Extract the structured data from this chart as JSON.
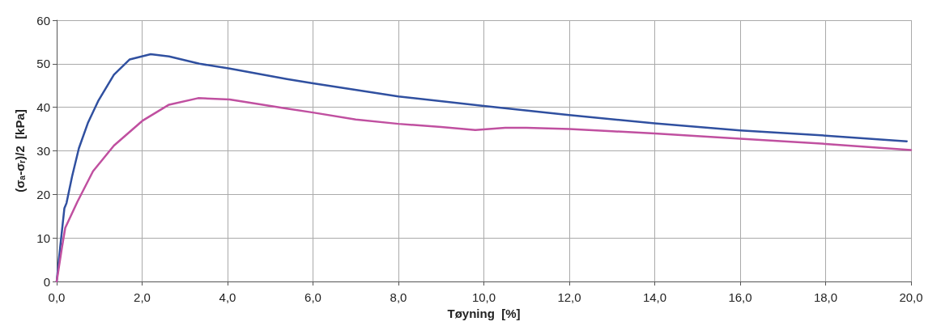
{
  "chart_data": {
    "type": "line",
    "xlabel": "Tøyning  [%]",
    "ylabel": "(σₐ-σᵣ)/2  [kPa]",
    "xlim": [
      0,
      20
    ],
    "ylim": [
      0,
      60
    ],
    "xticks": [
      {
        "value": 0,
        "label": "0,0"
      },
      {
        "value": 2,
        "label": "2,0"
      },
      {
        "value": 4,
        "label": "4,0"
      },
      {
        "value": 6,
        "label": "6,0"
      },
      {
        "value": 8,
        "label": "8,0"
      },
      {
        "value": 10,
        "label": "10,0"
      },
      {
        "value": 12,
        "label": "12,0"
      },
      {
        "value": 14,
        "label": "14,0"
      },
      {
        "value": 16,
        "label": "16,0"
      },
      {
        "value": 18,
        "label": "18,0"
      },
      {
        "value": 20,
        "label": "20,0"
      }
    ],
    "yticks": [
      0,
      10,
      20,
      30,
      40,
      50,
      60
    ],
    "grid": true,
    "marker": "none",
    "line_style": "solid",
    "series": [
      {
        "color": "#3050a0",
        "x": [
          0,
          0.05,
          0.18,
          0.23,
          0.36,
          0.52,
          0.73,
          0.98,
          1.34,
          1.71,
          2.2,
          2.63,
          3.34,
          4.05,
          5.39,
          6,
          8,
          10,
          12,
          14,
          16,
          18,
          19.9
        ],
        "values": [
          0,
          5,
          16.8,
          18,
          24.1,
          30.6,
          36.4,
          41.6,
          47.5,
          51,
          52.2,
          51.7,
          50,
          48.9,
          46.5,
          45.5,
          42.5,
          40.3,
          38.2,
          36.3,
          34.7,
          33.5,
          32.2
        ]
      },
      {
        "color": "#c050a0",
        "x": [
          0,
          0.12,
          0.2,
          0.48,
          0.85,
          1.34,
          2.02,
          2.63,
          3.31,
          4.05,
          5.39,
          6,
          7,
          8,
          9,
          9.8,
          10.5,
          11,
          12,
          13,
          14,
          16,
          18,
          20
        ],
        "values": [
          0,
          7.6,
          12.3,
          18.2,
          25.3,
          31.2,
          37,
          40.6,
          42.1,
          41.8,
          39.7,
          38.8,
          37.2,
          36.2,
          35.5,
          34.8,
          35.3,
          35.3,
          35,
          34.5,
          34,
          32.8,
          31.6,
          30.2
        ]
      }
    ]
  }
}
